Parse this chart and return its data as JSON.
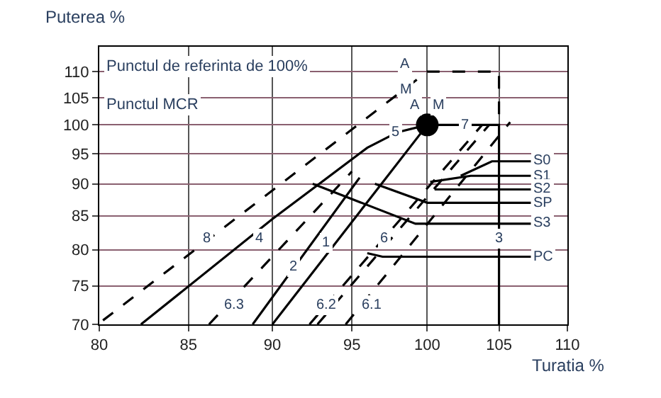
{
  "chart_data": {
    "type": "line",
    "ylabel": "Puterea %",
    "xlabel": "Turatia %",
    "log": "xy",
    "xlim": [
      80,
      110
    ],
    "ylim": [
      70,
      115
    ],
    "xticks": [
      80,
      85,
      90,
      95,
      100,
      105,
      110
    ],
    "yticks": [
      70,
      75,
      80,
      85,
      90,
      95,
      100,
      105,
      110
    ],
    "grid": true,
    "marker": "none",
    "series": [
      {
        "color": "#000000",
        "line_style": "dashed",
        "x": [
          80.2,
          100,
          105,
          105
        ],
        "values": [
          70.5,
          110,
          110,
          100
        ]
      },
      {
        "color": "#000000",
        "line_style": "solid",
        "x": [
          82.3,
          90,
          96,
          98,
          100
        ],
        "values": [
          70,
          84.5,
          96,
          98.7,
          100
        ]
      },
      {
        "color": "#000000",
        "line_style": "solid",
        "x": [
          100,
          105,
          105
        ],
        "values": [
          100,
          100,
          70
        ]
      },
      {
        "color": "#000000",
        "line_style": "solid",
        "x": [
          90,
          100
        ],
        "values": [
          70,
          100
        ]
      },
      {
        "color": "#000000",
        "line_style": "solid",
        "x": [
          88.8,
          95.5
        ],
        "values": [
          70,
          91
        ]
      },
      {
        "color": "#000000",
        "line_style": "dashed",
        "x": [
          86.2,
          95
        ],
        "values": [
          70,
          92
        ]
      },
      {
        "color": "#000000",
        "line_style": "dashed",
        "x": [
          92.3,
          103.8
        ],
        "values": [
          70,
          100
        ]
      },
      {
        "color": "#000000",
        "line_style": "dashed",
        "x": [
          92.8,
          104.3
        ],
        "values": [
          70,
          100
        ]
      },
      {
        "color": "#000000",
        "line_style": "dashed",
        "x": [
          94.6,
          105.8
        ],
        "values": [
          70,
          100.5
        ]
      },
      {
        "color": "#000000",
        "line_style": "solid",
        "x": [
          92.5,
          99.2,
          107.3
        ],
        "values": [
          90,
          83.8,
          83.8
        ]
      },
      {
        "color": "#000000",
        "line_style": "solid",
        "x": [
          96.5,
          100,
          107.3
        ],
        "values": [
          90,
          87,
          87
        ]
      },
      {
        "color": "#000000",
        "line_style": "solid",
        "x": [
          102.3,
          104.5,
          107.3
        ],
        "values": [
          91.3,
          93.7,
          93.7
        ]
      },
      {
        "color": "#000000",
        "line_style": "solid",
        "x": [
          100.2,
          103,
          107.3
        ],
        "values": [
          90.3,
          91.3,
          91.3
        ]
      },
      {
        "color": "#000000",
        "line_style": "solid",
        "x": [
          100.5,
          107.3
        ],
        "values": [
          89.1,
          89.1
        ]
      },
      {
        "color": "#000000",
        "line_style": "solid",
        "x": [
          96,
          97,
          107.3
        ],
        "values": [
          79.5,
          79,
          79
        ]
      },
      {
        "color": "#000000",
        "line_style": "none",
        "marker": "circle",
        "x": [
          100
        ],
        "values": [
          100
        ]
      }
    ],
    "annotations": [
      "Punctul de referinta de 100%",
      "Punctul MCR",
      {
        "text": "A",
        "x": 99.2,
        "y": 103.5
      },
      {
        "text": "M",
        "x": 100.8,
        "y": 103.5
      },
      {
        "text": "A",
        "x": 98.5,
        "y": 111.5
      },
      {
        "text": "M",
        "x": 98.5,
        "y": 106.5
      },
      {
        "text": "8",
        "x": 86.1,
        "y": 81.5
      },
      {
        "text": "4",
        "x": 89.2,
        "y": 81.5
      },
      {
        "text": "1",
        "x": 93.4,
        "y": 80.9
      },
      {
        "text": "2",
        "x": 91.3,
        "y": 77.5
      },
      {
        "text": "6.3",
        "x": 87.7,
        "y": 72.5
      },
      {
        "text": "6.2",
        "x": 93.4,
        "y": 72.5
      },
      {
        "text": "6.1",
        "x": 96.3,
        "y": 72.5
      },
      {
        "text": "6",
        "x": 97.1,
        "y": 81.5
      },
      {
        "text": "5",
        "x": 97.9,
        "y": 98.6
      },
      {
        "text": "7",
        "x": 102.6,
        "y": 100
      },
      {
        "text": "3",
        "x": 105,
        "y": 81.5
      },
      {
        "text": "S0",
        "x": 107.3,
        "y": 93.7
      },
      {
        "text": "S1",
        "x": 107.3,
        "y": 91.3
      },
      {
        "text": "S2",
        "x": 107.3,
        "y": 89.1
      },
      {
        "text": "SP",
        "x": 107.3,
        "y": 87
      },
      {
        "text": "S3",
        "x": 107.3,
        "y": 83.8
      },
      {
        "text": "PC",
        "x": 107.3,
        "y": 79
      }
    ]
  }
}
